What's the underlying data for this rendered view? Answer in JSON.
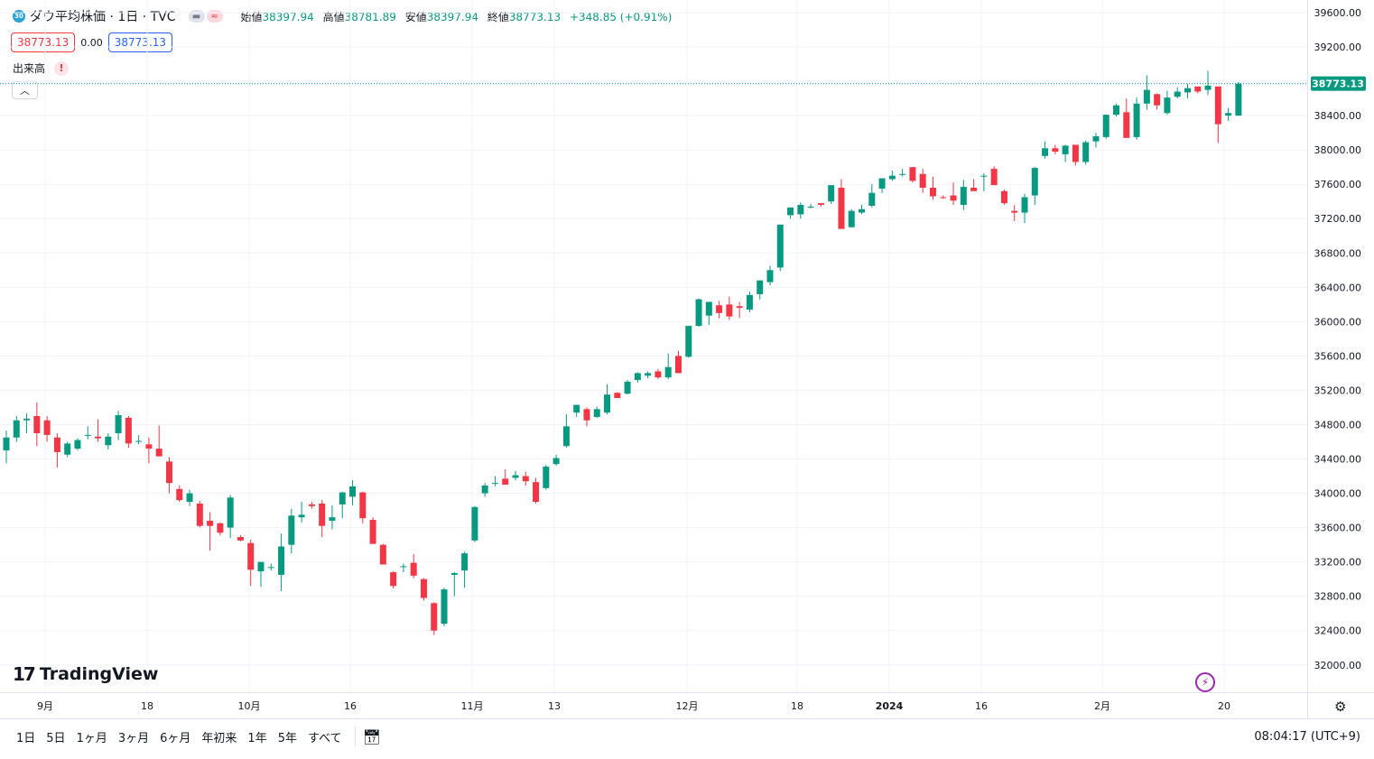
{
  "header": {
    "symbol_badge": "30",
    "symbol_title": "ダウ平均株価 · 1日 · TVC",
    "toggle_icons": [
      "minus-icon",
      "wave-icon"
    ],
    "ohlc": {
      "open_label": "始値",
      "open": "38397.94",
      "high_label": "高値",
      "high": "38781.89",
      "low_label": "安値",
      "low": "38397.94",
      "close_label": "終値",
      "close": "38773.13",
      "change": "+348.85 (+0.91%)"
    },
    "bid": "38773.13",
    "spread": "0.00",
    "ask": "38773.13",
    "volume_label": "出来高",
    "volume_warning": "!"
  },
  "price_axis": {
    "ticks": [
      "39600.00",
      "39200.00",
      "38800.00",
      "38400.00",
      "38000.00",
      "37600.00",
      "37200.00",
      "36800.00",
      "36400.00",
      "36000.00",
      "35600.00",
      "35200.00",
      "34800.00",
      "34400.00",
      "34000.00",
      "33600.00",
      "33200.00",
      "32800.00",
      "32400.00",
      "32000.00"
    ],
    "last_price": "38773.13"
  },
  "time_axis": {
    "labels": [
      "9月",
      "18",
      "10月",
      "16",
      "11月",
      "13",
      "12月",
      "18",
      "2024",
      "16",
      "2月",
      "20"
    ]
  },
  "logo_text": "TradingView",
  "bottom_bar": {
    "ranges": [
      "1日",
      "5日",
      "1ヶ月",
      "3ヶ月",
      "6ヶ月",
      "年初来",
      "1年",
      "5年",
      "すべて"
    ],
    "calendar_icon": "calendar-icon",
    "clock": "08:04:17 (UTC+9)"
  },
  "colors": {
    "up": "#089981",
    "down": "#f23645",
    "last_price_tag": "#089981",
    "accent": "#2962ff"
  },
  "chart_data": {
    "type": "candlestick",
    "title": "",
    "xlabel": "",
    "ylabel": "",
    "ylim": [
      31700,
      39750
    ],
    "grid": true,
    "candles": [
      [
        34500,
        34730,
        34350,
        34650
      ],
      [
        34650,
        34900,
        34600,
        34850
      ],
      [
        34850,
        34930,
        34700,
        34870
      ],
      [
        34900,
        35060,
        34550,
        34700
      ],
      [
        34850,
        34900,
        34600,
        34680
      ],
      [
        34650,
        34700,
        34300,
        34480
      ],
      [
        34450,
        34600,
        34420,
        34580
      ],
      [
        34520,
        34640,
        34500,
        34620
      ],
      [
        34670,
        34780,
        34630,
        34680
      ],
      [
        34660,
        34860,
        34600,
        34640
      ],
      [
        34560,
        34700,
        34510,
        34660
      ],
      [
        34700,
        34960,
        34620,
        34910
      ],
      [
        34880,
        34900,
        34530,
        34580
      ],
      [
        34600,
        34680,
        34570,
        34610
      ],
      [
        34570,
        34650,
        34350,
        34520
      ],
      [
        34520,
        34790,
        34460,
        34430
      ],
      [
        34370,
        34420,
        34000,
        34120
      ],
      [
        34050,
        34090,
        33900,
        33920
      ],
      [
        33900,
        34040,
        33850,
        34000
      ],
      [
        33880,
        33910,
        33600,
        33620
      ],
      [
        33680,
        33780,
        33330,
        33620
      ],
      [
        33650,
        33660,
        33510,
        33540
      ],
      [
        33600,
        33980,
        33480,
        33950
      ],
      [
        33490,
        33510,
        33440,
        33450
      ],
      [
        33420,
        33460,
        32920,
        33110
      ],
      [
        33090,
        33190,
        32910,
        33200
      ],
      [
        33130,
        33180,
        33100,
        33140
      ],
      [
        33050,
        33530,
        32860,
        33380
      ],
      [
        33400,
        33820,
        33300,
        33740
      ],
      [
        33720,
        33900,
        33660,
        33750
      ],
      [
        33870,
        33900,
        33820,
        33850
      ],
      [
        33880,
        33920,
        33490,
        33620
      ],
      [
        33680,
        33860,
        33580,
        33720
      ],
      [
        33870,
        34020,
        33710,
        34010
      ],
      [
        33960,
        34150,
        33860,
        34080
      ],
      [
        34010,
        34020,
        33650,
        33710
      ],
      [
        33690,
        33720,
        33420,
        33410
      ],
      [
        33400,
        33410,
        33190,
        33170
      ],
      [
        33080,
        33090,
        32890,
        32920
      ],
      [
        33140,
        33180,
        33080,
        33150
      ],
      [
        33190,
        33290,
        33010,
        33040
      ],
      [
        33000,
        33010,
        32750,
        32780
      ],
      [
        32720,
        32730,
        32350,
        32400
      ],
      [
        32480,
        32900,
        32450,
        32880
      ],
      [
        33050,
        33080,
        32800,
        33070
      ],
      [
        33100,
        33320,
        32900,
        33300
      ],
      [
        33450,
        33850,
        33430,
        33840
      ],
      [
        34000,
        34120,
        33960,
        34090
      ],
      [
        34110,
        34200,
        34080,
        34120
      ],
      [
        34170,
        34280,
        34100,
        34100
      ],
      [
        34180,
        34260,
        34150,
        34210
      ],
      [
        34200,
        34250,
        34090,
        34140
      ],
      [
        34130,
        34180,
        33880,
        33900
      ],
      [
        34060,
        34330,
        34040,
        34310
      ],
      [
        34340,
        34450,
        34320,
        34410
      ],
      [
        34550,
        34920,
        34530,
        34780
      ],
      [
        34940,
        35000,
        34890,
        35030
      ],
      [
        34980,
        35000,
        34780,
        34850
      ],
      [
        34890,
        35010,
        34880,
        34980
      ],
      [
        34940,
        35270,
        34920,
        35150
      ],
      [
        35170,
        35180,
        35130,
        35110
      ],
      [
        35160,
        35320,
        35150,
        35300
      ],
      [
        35320,
        35410,
        35290,
        35400
      ],
      [
        35370,
        35420,
        35340,
        35400
      ],
      [
        35420,
        35450,
        35330,
        35350
      ],
      [
        35350,
        35630,
        35330,
        35470
      ],
      [
        35600,
        35660,
        35430,
        35400
      ],
      [
        35590,
        35950,
        35580,
        35950
      ],
      [
        35950,
        36270,
        35940,
        36260
      ],
      [
        36070,
        36230,
        35960,
        36230
      ],
      [
        36190,
        36240,
        36040,
        36100
      ],
      [
        36200,
        36290,
        36020,
        36060
      ],
      [
        36180,
        36230,
        36040,
        36160
      ],
      [
        36140,
        36350,
        36110,
        36310
      ],
      [
        36320,
        36480,
        36260,
        36480
      ],
      [
        36460,
        36650,
        36420,
        36600
      ],
      [
        36630,
        37130,
        36590,
        37130
      ],
      [
        37240,
        37270,
        37200,
        37330
      ],
      [
        37250,
        37390,
        37200,
        37360
      ],
      [
        37340,
        37370,
        37320,
        37340
      ],
      [
        37380,
        37370,
        37340,
        37360
      ],
      [
        37400,
        37550,
        37370,
        37590
      ],
      [
        37560,
        37660,
        37100,
        37080
      ],
      [
        37100,
        37310,
        37100,
        37290
      ],
      [
        37270,
        37360,
        37250,
        37310
      ],
      [
        37350,
        37600,
        37330,
        37500
      ],
      [
        37550,
        37610,
        37500,
        37670
      ],
      [
        37660,
        37760,
        37640,
        37700
      ],
      [
        37710,
        37780,
        37690,
        37720
      ],
      [
        37800,
        37800,
        37620,
        37640
      ],
      [
        37720,
        37780,
        37500,
        37560
      ],
      [
        37560,
        37690,
        37420,
        37460
      ],
      [
        37450,
        37470,
        37430,
        37440
      ],
      [
        37470,
        37620,
        37360,
        37410
      ],
      [
        37360,
        37650,
        37300,
        37570
      ],
      [
        37560,
        37660,
        37530,
        37520
      ],
      [
        37690,
        37730,
        37520,
        37700
      ],
      [
        37780,
        37810,
        37640,
        37590
      ],
      [
        37520,
        37540,
        37360,
        37380
      ],
      [
        37290,
        37360,
        37170,
        37270
      ],
      [
        37270,
        37490,
        37150,
        37450
      ],
      [
        37470,
        37800,
        37360,
        37790
      ],
      [
        37930,
        38100,
        37900,
        38020
      ],
      [
        38020,
        38060,
        37950,
        37980
      ],
      [
        37950,
        38060,
        37860,
        38050
      ],
      [
        38060,
        38020,
        37820,
        37860
      ],
      [
        37860,
        38110,
        37830,
        38090
      ],
      [
        38100,
        38200,
        38030,
        38160
      ],
      [
        38150,
        38410,
        38130,
        38410
      ],
      [
        38410,
        38540,
        38390,
        38520
      ],
      [
        38440,
        38600,
        38170,
        38140
      ],
      [
        38150,
        38610,
        38120,
        38540
      ],
      [
        38540,
        38870,
        38470,
        38700
      ],
      [
        38650,
        38660,
        38470,
        38520
      ],
      [
        38430,
        38690,
        38410,
        38610
      ],
      [
        38620,
        38730,
        38600,
        38680
      ],
      [
        38670,
        38770,
        38600,
        38720
      ],
      [
        38740,
        38720,
        38660,
        38680
      ],
      [
        38700,
        38920,
        38640,
        38750
      ],
      [
        38740,
        38700,
        38080,
        38300
      ],
      [
        38400,
        38490,
        38340,
        38430
      ],
      [
        38400,
        38790,
        38400,
        38773
      ]
    ]
  }
}
